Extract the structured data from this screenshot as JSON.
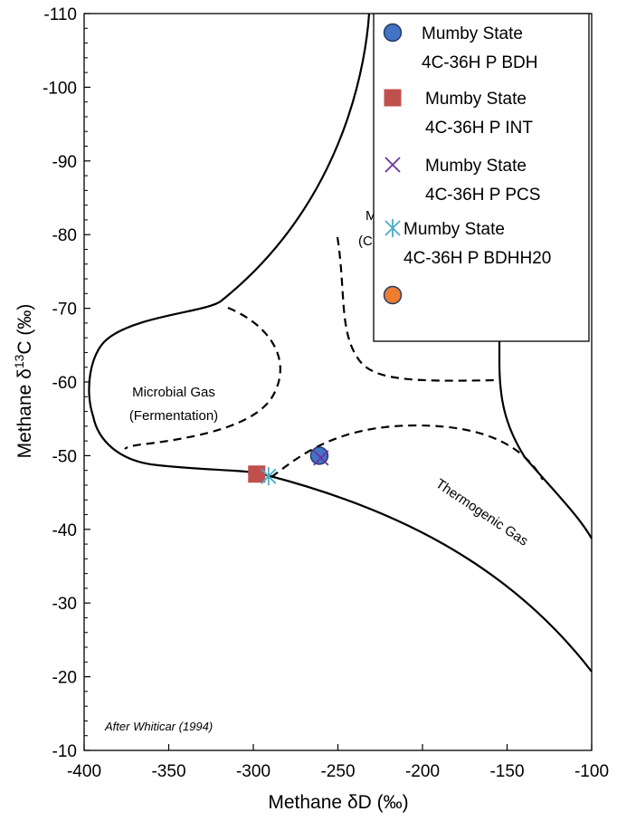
{
  "chart_data": {
    "type": "scatter",
    "xlabel_prefix": "Methane ",
    "xlabel_symbol": "δD",
    "xlabel_unit": " (‰)",
    "ylabel_prefix": "Methane ",
    "ylabel_symbol": "δ",
    "ylabel_sup": "13",
    "ylabel_suffix": "C (‰)",
    "xlim": [
      -400,
      -100
    ],
    "ylim": [
      -10,
      -110
    ],
    "y_reversed": true,
    "x_ticks": [
      -400,
      -350,
      -300,
      -250,
      -200,
      -150,
      -100
    ],
    "y_ticks": [
      -110,
      -100,
      -90,
      -80,
      -70,
      -60,
      -50,
      -40,
      -30,
      -20,
      -10
    ],
    "grid": false,
    "legend_position": "top-right",
    "series": [
      {
        "name": "Mumby State 4C-36H P BDH",
        "name_lines": [
          "Mumby State",
          "4C-36H P BDH"
        ],
        "marker": "circle",
        "color": "#4472C4",
        "x": [
          -261
        ],
        "y": [
          -50
        ]
      },
      {
        "name": "Mumby State 4C-36H P INT",
        "name_lines": [
          "Mumby State",
          "4C-36H P INT"
        ],
        "marker": "square",
        "color": "#C0504D",
        "x": [
          -298
        ],
        "y": [
          -47.5
        ]
      },
      {
        "name": "Mumby State 4C-36H P PCS",
        "name_lines": [
          "Mumby State",
          "4C-36H P PCS"
        ],
        "marker": "x",
        "color": "#7030A0",
        "x": [
          -260
        ],
        "y": [
          -49.7
        ]
      },
      {
        "name": "Mumby State 4C-36H P BDHH20",
        "name_lines": [
          "Mumby State",
          "4C-36H P BDHH20"
        ],
        "marker": "asterisk",
        "color": "#4BACC6",
        "x": [
          -291
        ],
        "y": [
          -47.2
        ]
      },
      {
        "name": "",
        "name_lines": [],
        "marker": "circle",
        "color": "#ED7D31",
        "x": [],
        "y": []
      }
    ],
    "annotations": {
      "microbial_fermentation": [
        "Microbial Gas",
        "(Fermentation)"
      ],
      "thermogenic": "Thermogenic Gas",
      "hidden_label_fragment_1": "M",
      "hidden_label_fragment_2": "(C",
      "credit": "After Whiticar (1994)"
    }
  }
}
